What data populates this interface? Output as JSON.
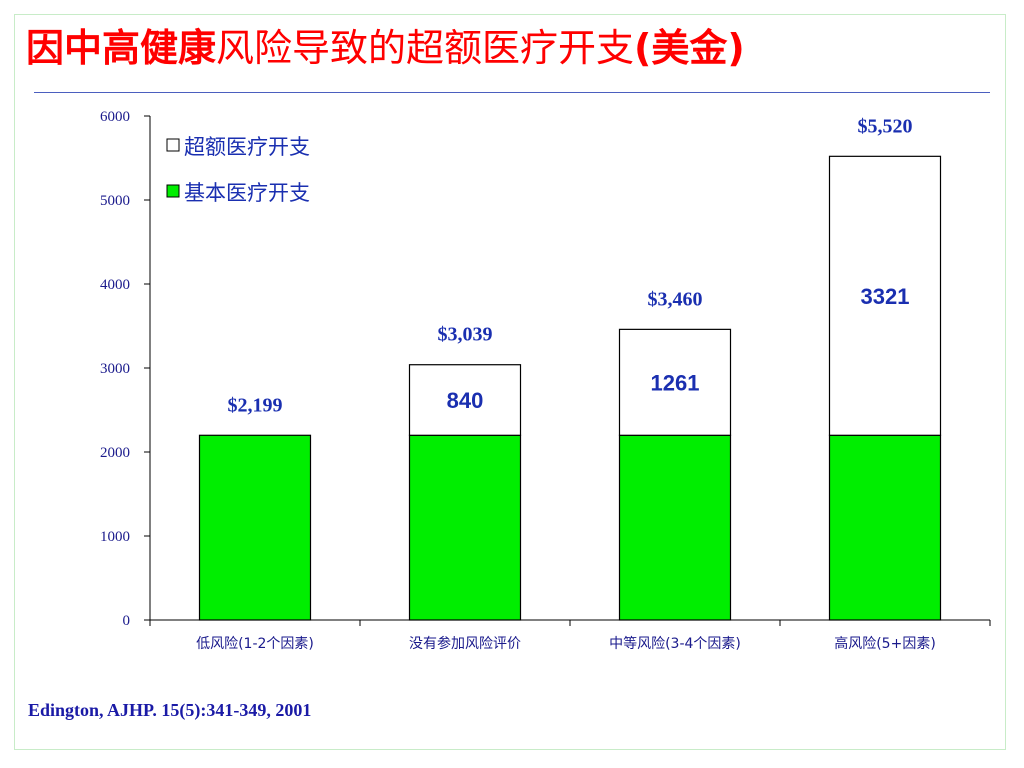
{
  "title_bold": "因中高健康",
  "title_rest": "风险导致的超额医疗开支",
  "title_unit": "(美金)",
  "citation": "Edington, AJHP. 15(5):341-349, 2001",
  "colors": {
    "title": "#ff0000",
    "basic": "#00ee00",
    "excess": "#ffffff",
    "bar_stroke": "#000000",
    "label_blue": "#1a2fb0",
    "axis": "#000000",
    "category_text": "#1a1a8c",
    "tick_text": "#1a1a8c"
  },
  "chart_data": {
    "type": "bar",
    "stacked": true,
    "categories": [
      "低风险(1-2个因素)",
      "没有参加风险评价",
      "中等风险(3-4个因素)",
      "高风险(5+因素)"
    ],
    "series": [
      {
        "name": "基本医疗开支",
        "values": [
          2199,
          2199,
          2199,
          2199
        ],
        "color": "#00ee00"
      },
      {
        "name": "超额医疗开支",
        "values": [
          0,
          840,
          1261,
          3321
        ],
        "color": "#ffffff"
      }
    ],
    "segment_labels": [
      "",
      "840",
      "1261",
      "3321"
    ],
    "total_labels": [
      "$2,199",
      "$3,039",
      "$3,460",
      "$5,520"
    ],
    "yticks": [
      0,
      1000,
      2000,
      3000,
      4000,
      5000,
      6000
    ],
    "ylim": [
      0,
      6000
    ],
    "legend_position": "top-left",
    "legend": [
      {
        "label": "超额医疗开支",
        "color": "#ffffff"
      },
      {
        "label": "基本医疗开支",
        "color": "#00ee00"
      }
    ],
    "grid": false
  }
}
